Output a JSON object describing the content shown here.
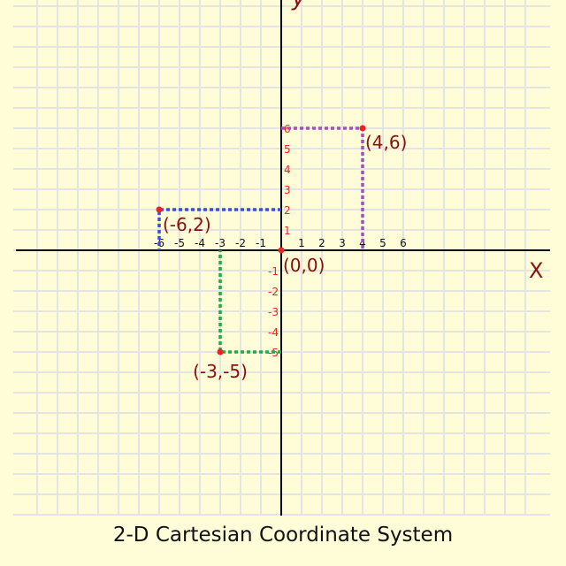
{
  "diagram": {
    "title": "2-D Cartesian Coordinate System",
    "x_axis_label": "X",
    "y_axis_label": "y",
    "x_ticks": [
      -6,
      -5,
      -4,
      -3,
      -2,
      -1,
      1,
      2,
      3,
      4,
      5,
      6
    ],
    "y_ticks": [
      6,
      5,
      4,
      3,
      2,
      1,
      -1,
      -2,
      -3,
      -4,
      -5
    ],
    "points": [
      {
        "x": 0,
        "y": 0,
        "label": "(0,0)",
        "color": ""
      },
      {
        "x": 4,
        "y": 6,
        "label": "(4,6)",
        "color": "#a050c0"
      },
      {
        "x": -6,
        "y": 2,
        "label": "(-6,2)",
        "color": "#3a4fd8"
      },
      {
        "x": -3,
        "y": -5,
        "label": "(-3,-5)",
        "color": "#22aa44"
      }
    ],
    "colors": {
      "background": "#fffcd8",
      "grid": "#e4e4e4",
      "axis": "#000000",
      "tick_x": "#111111",
      "tick_y": "#ee2222",
      "point": "#ee2222",
      "label": "#8b0f0f"
    }
  }
}
